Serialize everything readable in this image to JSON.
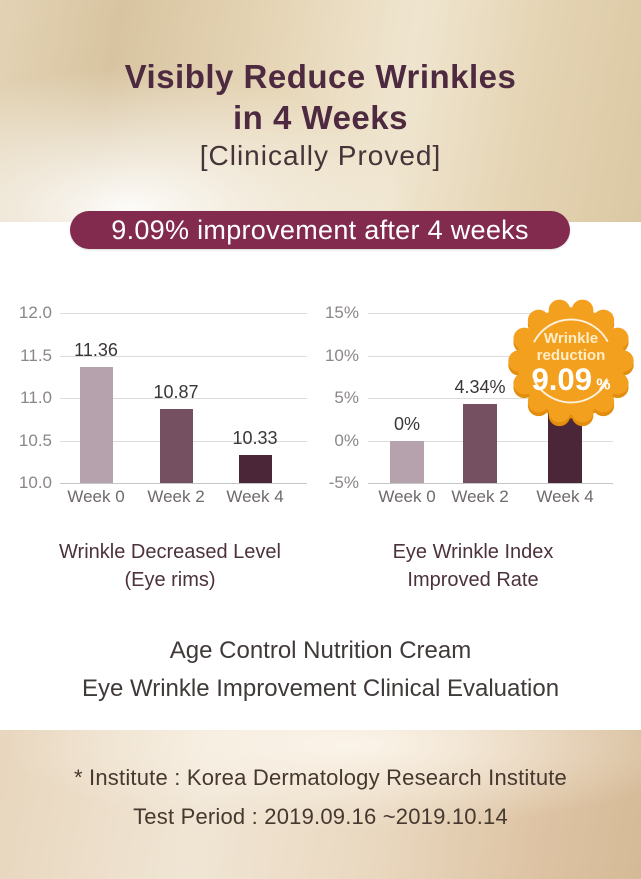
{
  "hero": {
    "title_line1": "Visibly Reduce Wrinkles",
    "title_line2": "in 4 Weeks",
    "subtitle": "[Clinically Proved]",
    "banner": "9.09% improvement after 4 weeks"
  },
  "badge": {
    "line1": "Wrinkle",
    "line2": "reduction",
    "value": "9.09",
    "unit": "%",
    "fill_color": "#f4a01f",
    "shadow_color": "#e28d0d"
  },
  "product": {
    "line1": "Age Control Nutrition Cream",
    "line2": "Eye Wrinkle Improvement Clinical Evaluation"
  },
  "footer": {
    "line1": "* Institute : Korea Dermatology Research Institute",
    "line2": "Test Period : 2019.09.16 ~2019.10.14"
  },
  "colors": {
    "title": "#4e2a41",
    "banner_bg": "#832a4f",
    "bar_week0": "#b5a2ac",
    "bar_week2": "#745060",
    "bar_week4": "#4a2638",
    "gridline": "#dcdcdc",
    "axis_text": "#8b8689"
  },
  "chart_data": [
    {
      "type": "bar",
      "title": "Wrinkle Decreased Level (Eye rims)",
      "caption": [
        "Wrinkle Decreased Level",
        "(Eye rims)"
      ],
      "categories": [
        "Week 0",
        "Week 2",
        "Week 4"
      ],
      "values": [
        11.36,
        10.87,
        10.33
      ],
      "value_labels": [
        "11.36",
        "10.87",
        "10.33"
      ],
      "bar_colors": [
        "#b5a2ac",
        "#745060",
        "#4a2638"
      ],
      "ylim": [
        10.0,
        12.0
      ],
      "yticks": [
        10.0,
        10.5,
        11.0,
        11.5,
        12.0
      ],
      "ytick_labels": [
        "10.0",
        "10.5",
        "11.0",
        "11.5",
        "12.0"
      ],
      "grid": true,
      "legend": false,
      "xlabel": "",
      "ylabel": ""
    },
    {
      "type": "bar",
      "title": "Eye Wrinkle Index Improved Rate",
      "caption": [
        "Eye Wrinkle Index",
        "Improved Rate"
      ],
      "categories": [
        "Week 0",
        "Week 2",
        "Week 4"
      ],
      "values": [
        0,
        4.34,
        9.09
      ],
      "value_labels": [
        "0%",
        "4.34%",
        ""
      ],
      "bar_colors": [
        "#b5a2ac",
        "#745060",
        "#4a2638"
      ],
      "ylim": [
        -5,
        15
      ],
      "yticks": [
        -5,
        0,
        5,
        10,
        15
      ],
      "ytick_labels": [
        "-5%",
        "0%",
        "5%",
        "10%",
        "15%"
      ],
      "grid": true,
      "legend": false,
      "xlabel": "",
      "ylabel": "",
      "annotation": "Wrinkle reduction 9.09% seal over Week 4 bar"
    }
  ]
}
